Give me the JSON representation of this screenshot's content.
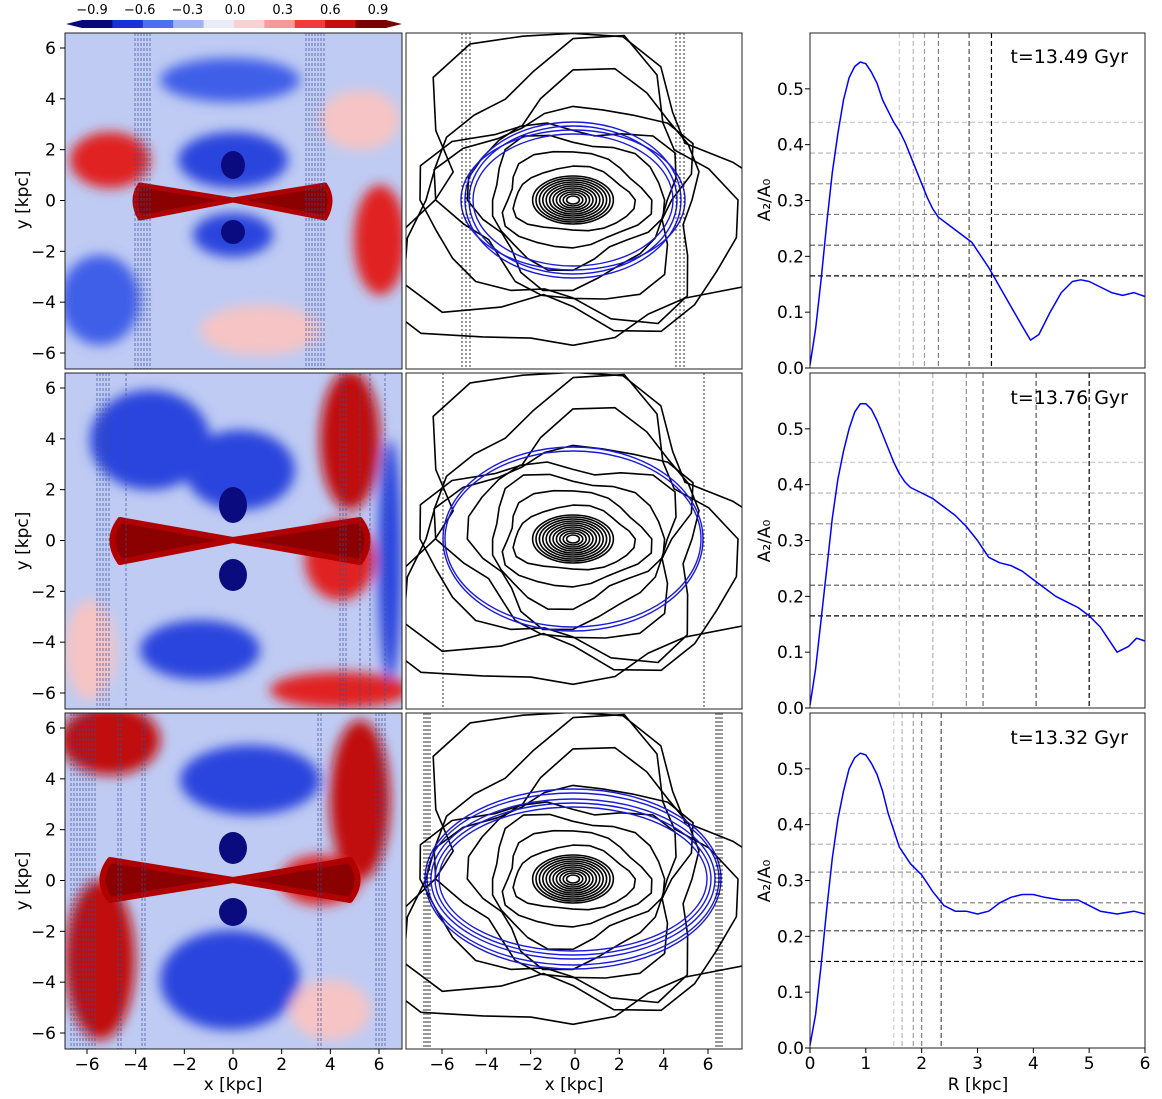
{
  "colorbar": {
    "ticks": [
      "−0.9",
      "−0.6",
      "−0.3",
      "0.0",
      "0.3",
      "0.6",
      "0.9"
    ],
    "colors": [
      "#08087a",
      "#1b2fd6",
      "#4d6ff0",
      "#9fb3f5",
      "#e9ecf8",
      "#f8d2d2",
      "#f59a9a",
      "#ef3b3b",
      "#c40e0e",
      "#7a0000"
    ]
  },
  "axes": {
    "map_xlabel": "x [kpc]",
    "map_ylabel": "y [kpc]",
    "profile_xlabel": "R [kpc]",
    "profile_ylabel": "A₂/A₀",
    "map_xticks": [
      "−6",
      "−4",
      "−2",
      "0",
      "2",
      "4",
      "6"
    ],
    "map_yticks": [
      "6",
      "4",
      "2",
      "0",
      "−2",
      "−4",
      "−6"
    ],
    "profile_xticks": [
      "0",
      "1",
      "2",
      "3",
      "4",
      "5",
      "6"
    ],
    "profile_yticks": [
      "0.0",
      "0.1",
      "0.2",
      "0.3",
      "0.4",
      "0.5"
    ]
  },
  "chart_data": [
    {
      "type": "line",
      "title": "t=13.49 Gyr",
      "xlabel": "",
      "ylabel": "A₂/A₀",
      "xlim": [
        0,
        6
      ],
      "ylim": [
        0,
        0.6
      ],
      "series": [
        {
          "color": "#0000ff",
          "x": [
            0,
            0.1,
            0.2,
            0.3,
            0.4,
            0.5,
            0.6,
            0.7,
            0.8,
            0.9,
            1.0,
            1.1,
            1.2,
            1.3,
            1.4,
            1.5,
            1.6,
            1.7,
            1.8,
            1.9,
            2.0,
            2.1,
            2.2,
            2.3,
            2.5,
            2.7,
            2.9,
            3.0,
            3.2,
            3.4,
            3.6,
            3.8,
            3.95,
            4.1,
            4.3,
            4.5,
            4.7,
            4.85,
            5.0,
            5.2,
            5.4,
            5.6,
            5.8,
            6.0
          ],
          "y": [
            0.005,
            0.07,
            0.16,
            0.26,
            0.35,
            0.42,
            0.48,
            0.52,
            0.54,
            0.548,
            0.545,
            0.53,
            0.51,
            0.48,
            0.46,
            0.44,
            0.425,
            0.405,
            0.38,
            0.355,
            0.33,
            0.305,
            0.285,
            0.27,
            0.255,
            0.24,
            0.225,
            0.21,
            0.18,
            0.145,
            0.11,
            0.075,
            0.05,
            0.06,
            0.1,
            0.135,
            0.155,
            0.158,
            0.155,
            0.145,
            0.135,
            0.13,
            0.135,
            0.128
          ]
        }
      ],
      "h_lines": [
        {
          "y": 0.44,
          "color": "#c8c8c8"
        },
        {
          "y": 0.385,
          "color": "#b0b0b0"
        },
        {
          "y": 0.33,
          "color": "#9a9a9a"
        },
        {
          "y": 0.275,
          "color": "#7a7a7a"
        },
        {
          "y": 0.22,
          "color": "#555555"
        },
        {
          "y": 0.165,
          "color": "#000000"
        }
      ],
      "v_lines": [
        {
          "x": 1.6,
          "color": "#d0d0d0"
        },
        {
          "x": 1.85,
          "color": "#b8b8b8"
        },
        {
          "x": 2.05,
          "color": "#a0a0a0"
        },
        {
          "x": 2.3,
          "color": "#808080"
        },
        {
          "x": 2.85,
          "color": "#555555"
        },
        {
          "x": 3.25,
          "color": "#000000"
        }
      ]
    },
    {
      "type": "line",
      "title": "t=13.76 Gyr",
      "xlabel": "",
      "ylabel": "A₂/A₀",
      "xlim": [
        0,
        6
      ],
      "ylim": [
        0,
        0.6
      ],
      "series": [
        {
          "color": "#0000ff",
          "x": [
            0,
            0.1,
            0.2,
            0.3,
            0.4,
            0.5,
            0.6,
            0.7,
            0.8,
            0.9,
            1.0,
            1.1,
            1.2,
            1.3,
            1.4,
            1.5,
            1.6,
            1.7,
            1.8,
            2.0,
            2.2,
            2.4,
            2.6,
            2.8,
            3.0,
            3.1,
            3.2,
            3.4,
            3.6,
            3.8,
            4.0,
            4.2,
            4.4,
            4.6,
            4.8,
            5.0,
            5.2,
            5.4,
            5.5,
            5.7,
            5.85,
            6.0
          ],
          "y": [
            0.005,
            0.07,
            0.16,
            0.25,
            0.34,
            0.41,
            0.46,
            0.5,
            0.53,
            0.545,
            0.545,
            0.535,
            0.515,
            0.49,
            0.465,
            0.44,
            0.42,
            0.405,
            0.395,
            0.385,
            0.375,
            0.36,
            0.345,
            0.325,
            0.3,
            0.285,
            0.27,
            0.26,
            0.255,
            0.245,
            0.23,
            0.215,
            0.2,
            0.19,
            0.18,
            0.165,
            0.145,
            0.115,
            0.1,
            0.11,
            0.125,
            0.12
          ]
        }
      ],
      "h_lines": [
        {
          "y": 0.44,
          "color": "#c8c8c8"
        },
        {
          "y": 0.385,
          "color": "#b0b0b0"
        },
        {
          "y": 0.33,
          "color": "#9a9a9a"
        },
        {
          "y": 0.275,
          "color": "#7a7a7a"
        },
        {
          "y": 0.22,
          "color": "#555555"
        },
        {
          "y": 0.165,
          "color": "#000000"
        }
      ],
      "v_lines": [
        {
          "x": 1.6,
          "color": "#d0d0d0"
        },
        {
          "x": 2.2,
          "color": "#b0b0b0"
        },
        {
          "x": 2.8,
          "color": "#909090"
        },
        {
          "x": 3.1,
          "color": "#707070"
        },
        {
          "x": 4.05,
          "color": "#555555"
        },
        {
          "x": 5.0,
          "color": "#000000"
        }
      ]
    },
    {
      "type": "line",
      "title": "t=13.32 Gyr",
      "xlabel": "R [kpc]",
      "ylabel": "A₂/A₀",
      "xlim": [
        0,
        6
      ],
      "ylim": [
        0,
        0.6
      ],
      "series": [
        {
          "color": "#0000ff",
          "x": [
            0,
            0.1,
            0.2,
            0.3,
            0.4,
            0.5,
            0.6,
            0.7,
            0.8,
            0.9,
            1.0,
            1.1,
            1.2,
            1.3,
            1.4,
            1.5,
            1.6,
            1.7,
            1.8,
            1.9,
            2.0,
            2.1,
            2.2,
            2.4,
            2.6,
            2.8,
            3.0,
            3.2,
            3.4,
            3.6,
            3.8,
            4.0,
            4.2,
            4.5,
            4.8,
            5.0,
            5.2,
            5.5,
            5.8,
            6.0
          ],
          "y": [
            0.005,
            0.06,
            0.15,
            0.25,
            0.34,
            0.41,
            0.46,
            0.5,
            0.52,
            0.528,
            0.525,
            0.51,
            0.49,
            0.46,
            0.42,
            0.39,
            0.36,
            0.345,
            0.33,
            0.32,
            0.31,
            0.295,
            0.28,
            0.255,
            0.245,
            0.245,
            0.24,
            0.245,
            0.26,
            0.27,
            0.275,
            0.275,
            0.27,
            0.265,
            0.265,
            0.255,
            0.245,
            0.24,
            0.245,
            0.24
          ]
        }
      ],
      "h_lines": [
        {
          "y": 0.42,
          "color": "#c8c8c8"
        },
        {
          "y": 0.365,
          "color": "#b0b0b0"
        },
        {
          "y": 0.315,
          "color": "#9a9a9a"
        },
        {
          "y": 0.26,
          "color": "#7a7a7a"
        },
        {
          "y": 0.21,
          "color": "#555555"
        },
        {
          "y": 0.155,
          "color": "#000000"
        }
      ],
      "v_lines": [
        {
          "x": 1.5,
          "color": "#d0d0d0"
        },
        {
          "x": 1.65,
          "color": "#b8b8b8"
        },
        {
          "x": 1.85,
          "color": "#a0a0a0"
        },
        {
          "x": 2.0,
          "color": "#808080"
        },
        {
          "x": 2.35,
          "color": "#555555"
        }
      ]
    }
  ]
}
